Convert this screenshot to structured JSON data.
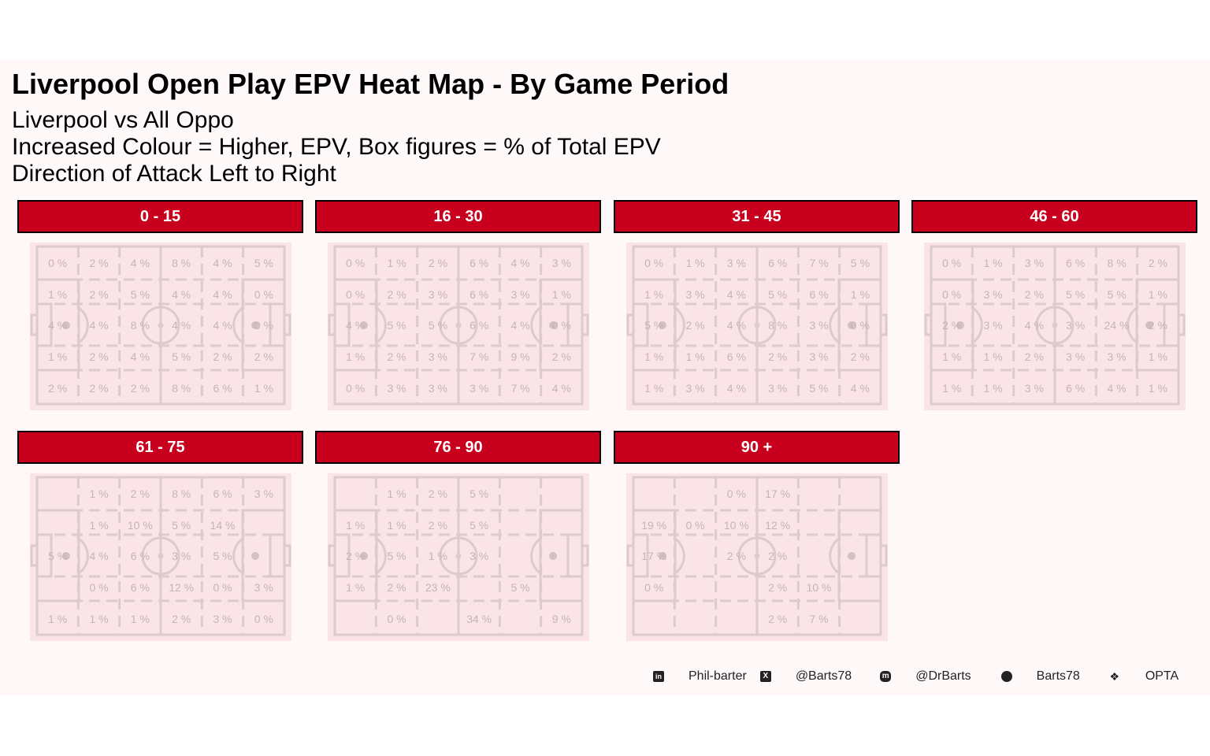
{
  "title": "Liverpool Open Play EPV Heat Map - By Game Period",
  "subtitle_lines": [
    "Liverpool vs All Oppo",
    "Increased Colour = Higher, EPV, Box figures = % of Total EPV",
    "Direction of Attack Left to Right"
  ],
  "colors": {
    "strip": "#c8001e",
    "pitch": "#fbe4e7",
    "lines": "#dccacd",
    "label": "#c7b2b6",
    "heat": "#e0314a"
  },
  "chart_data": {
    "type": "heatmap",
    "title": "Liverpool Open Play EPV Heat Map - By Game Period",
    "grid": {
      "columns": 6,
      "rows": 5
    },
    "panels": [
      {
        "period": "0 - 15",
        "cells": [
          [
            "0 %",
            "2 %",
            "4 %",
            "8 %",
            "4 %",
            "5 %"
          ],
          [
            "1 %",
            "2 %",
            "5 %",
            "4 %",
            "4 %",
            "0 %"
          ],
          [
            "4 %",
            "4 %",
            "8 %",
            "4 %",
            "4 %",
            "0 %"
          ],
          [
            "1 %",
            "2 %",
            "4 %",
            "5 %",
            "2 %",
            "2 %"
          ],
          [
            "2 %",
            "2 %",
            "2 %",
            "8 %",
            "6 %",
            "1 %"
          ]
        ]
      },
      {
        "period": "16 - 30",
        "cells": [
          [
            "0 %",
            "1 %",
            "2 %",
            "6 %",
            "4 %",
            "3 %"
          ],
          [
            "0 %",
            "2 %",
            "3 %",
            "6 %",
            "3 %",
            "1 %"
          ],
          [
            "4 %",
            "5 %",
            "5 %",
            "6 %",
            "4 %",
            "0 %"
          ],
          [
            "1 %",
            "2 %",
            "3 %",
            "7 %",
            "9 %",
            "2 %"
          ],
          [
            "0 %",
            "3 %",
            "3 %",
            "3 %",
            "7 %",
            "4 %"
          ]
        ]
      },
      {
        "period": "31 - 45",
        "cells": [
          [
            "0 %",
            "1 %",
            "3 %",
            "6 %",
            "7 %",
            "5 %"
          ],
          [
            "1 %",
            "3 %",
            "4 %",
            "5 %",
            "6 %",
            "1 %"
          ],
          [
            "5 %",
            "2 %",
            "4 %",
            "8 %",
            "3 %",
            "0 %"
          ],
          [
            "1 %",
            "1 %",
            "6 %",
            "2 %",
            "3 %",
            "2 %"
          ],
          [
            "1 %",
            "3 %",
            "4 %",
            "3 %",
            "5 %",
            "4 %"
          ]
        ]
      },
      {
        "period": "46 - 60",
        "cells": [
          [
            "0 %",
            "1 %",
            "3 %",
            "6 %",
            "8 %",
            "2 %"
          ],
          [
            "0 %",
            "3 %",
            "2 %",
            "5 %",
            "5 %",
            "1 %"
          ],
          [
            "2 %",
            "3 %",
            "4 %",
            "3 %",
            "24 %",
            "2 %"
          ],
          [
            "1 %",
            "1 %",
            "2 %",
            "3 %",
            "3 %",
            "1 %"
          ],
          [
            "1 %",
            "1 %",
            "3 %",
            "6 %",
            "4 %",
            "1 %"
          ]
        ]
      },
      {
        "period": "61 - 75",
        "cells": [
          [
            "",
            "1 %",
            "2 %",
            "8 %",
            "6 %",
            "3 %"
          ],
          [
            "",
            "1 %",
            "10 %",
            "5 %",
            "14 %",
            ""
          ],
          [
            "5 %",
            "4 %",
            "6 %",
            "3 %",
            "5 %",
            ""
          ],
          [
            "",
            "0 %",
            "6 %",
            "12 %",
            "0 %",
            "3 %"
          ],
          [
            "1 %",
            "1 %",
            "1 %",
            "2 %",
            "3 %",
            "0 %"
          ]
        ]
      },
      {
        "period": "76 - 90",
        "cells": [
          [
            "",
            "1 %",
            "2 %",
            "5 %",
            "",
            ""
          ],
          [
            "1 %",
            "1 %",
            "2 %",
            "5 %",
            "",
            ""
          ],
          [
            "2 %",
            "5 %",
            "1 %",
            "3 %",
            "",
            ""
          ],
          [
            "1 %",
            "2 %",
            "23 %",
            "",
            "5 %",
            ""
          ],
          [
            "",
            "0 %",
            "",
            "34 %",
            "",
            "9 %"
          ]
        ]
      },
      {
        "period": "90 +",
        "cells": [
          [
            "",
            "",
            "0 %",
            "17 %",
            "",
            ""
          ],
          [
            "19 %",
            "0 %",
            "10 %",
            "12 %",
            "",
            ""
          ],
          [
            "17 %",
            "",
            "2 %",
            "2 %",
            "",
            ""
          ],
          [
            "0 %",
            "",
            "",
            "2 %",
            "10 %",
            ""
          ],
          [
            "",
            "",
            "",
            "2 %",
            "7 %",
            ""
          ]
        ]
      }
    ]
  },
  "footer": [
    {
      "icon": "linkedin-icon",
      "label": "Phil-barter"
    },
    {
      "icon": "x-twitter-icon",
      "label": "@Barts78"
    },
    {
      "icon": "mastodon-icon",
      "label": "@DrBarts"
    },
    {
      "icon": "github-icon",
      "label": "Barts78"
    },
    {
      "icon": "dropbox-icon",
      "label": "OPTA"
    }
  ]
}
